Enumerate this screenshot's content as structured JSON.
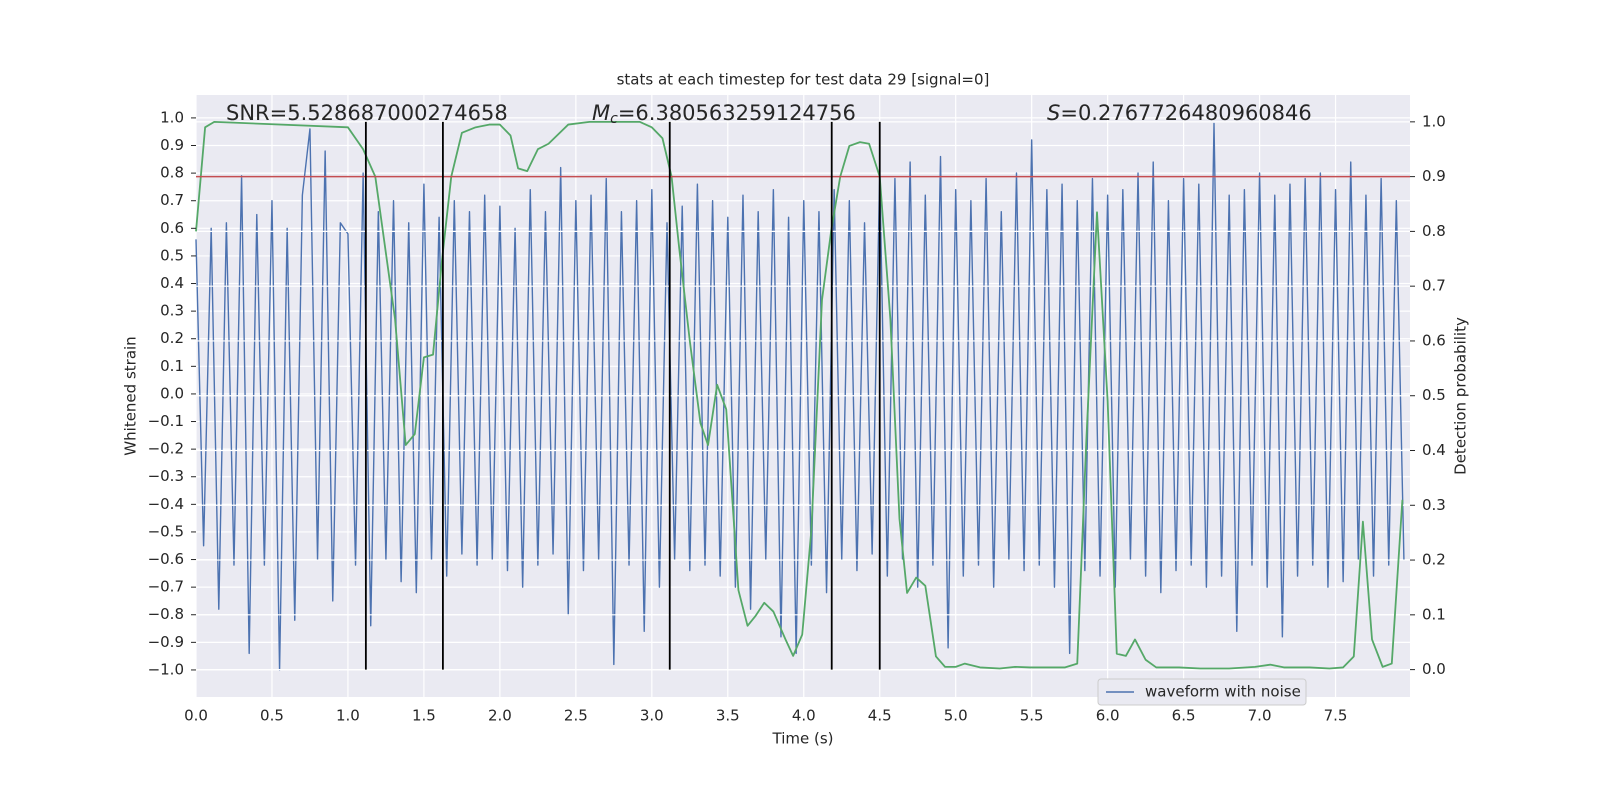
{
  "chart_data": {
    "type": "line",
    "title": "stats at each timestep for test data 29 [signal=0]",
    "xlabel": "Time (s)",
    "ylabel": "Whitened strain",
    "y2label": "Detection probability",
    "annotations": [
      {
        "text": "SNR=5.528687000274658"
      },
      {
        "symbol": "M",
        "subscript": "c",
        "text": "=6.380563259124756"
      },
      {
        "symbol": "S",
        "text": "=0.2767726480960846"
      }
    ],
    "xlim": [
      0,
      7.99
    ],
    "ylim": [
      -1.098,
      1.083
    ],
    "y2lim": [
      -0.05,
      1.049
    ],
    "xticks": [
      {
        "value": 0,
        "label": "0.0"
      },
      {
        "value": 0.5,
        "label": "0.5"
      },
      {
        "value": 1,
        "label": "1.0"
      },
      {
        "value": 1.5,
        "label": "1.5"
      },
      {
        "value": 2,
        "label": "2.0"
      },
      {
        "value": 2.5,
        "label": "2.5"
      },
      {
        "value": 3,
        "label": "3.0"
      },
      {
        "value": 3.5,
        "label": "3.5"
      },
      {
        "value": 4,
        "label": "4.0"
      },
      {
        "value": 4.5,
        "label": "4.5"
      },
      {
        "value": 5,
        "label": "5.0"
      },
      {
        "value": 5.5,
        "label": "5.5"
      },
      {
        "value": 6,
        "label": "6.0"
      },
      {
        "value": 6.5,
        "label": "6.5"
      },
      {
        "value": 7,
        "label": "7.0"
      },
      {
        "value": 7.5,
        "label": "7.5"
      }
    ],
    "yticks": [
      {
        "value": -1,
        "label": "−1.0"
      },
      {
        "value": -0.9,
        "label": "−0.9"
      },
      {
        "value": -0.8,
        "label": "−0.8"
      },
      {
        "value": -0.7,
        "label": "−0.7"
      },
      {
        "value": -0.6,
        "label": "−0.6"
      },
      {
        "value": -0.5,
        "label": "−0.5"
      },
      {
        "value": -0.4,
        "label": "−0.4"
      },
      {
        "value": -0.3,
        "label": "−0.3"
      },
      {
        "value": -0.2,
        "label": "−0.2"
      },
      {
        "value": -0.1,
        "label": "−0.1"
      },
      {
        "value": 0,
        "label": "0.0"
      },
      {
        "value": 0.1,
        "label": "0.1"
      },
      {
        "value": 0.2,
        "label": "0.2"
      },
      {
        "value": 0.3,
        "label": "0.3"
      },
      {
        "value": 0.4,
        "label": "0.4"
      },
      {
        "value": 0.5,
        "label": "0.5"
      },
      {
        "value": 0.6,
        "label": "0.6"
      },
      {
        "value": 0.7,
        "label": "0.7"
      },
      {
        "value": 0.8,
        "label": "0.8"
      },
      {
        "value": 0.9,
        "label": "0.9"
      },
      {
        "value": 1,
        "label": "1.0"
      }
    ],
    "y2ticks": [
      {
        "value": 0,
        "label": "0.0"
      },
      {
        "value": 0.1,
        "label": "0.1"
      },
      {
        "value": 0.2,
        "label": "0.2"
      },
      {
        "value": 0.3,
        "label": "0.3"
      },
      {
        "value": 0.4,
        "label": "0.4"
      },
      {
        "value": 0.5,
        "label": "0.5"
      },
      {
        "value": 0.6,
        "label": "0.6"
      },
      {
        "value": 0.7,
        "label": "0.7"
      },
      {
        "value": 0.8,
        "label": "0.8"
      },
      {
        "value": 0.9,
        "label": "0.9"
      },
      {
        "value": 1,
        "label": "1.0"
      }
    ],
    "grid": true,
    "legend": "lower right",
    "series": [
      {
        "name": "waveform with noise",
        "color": "#4c72b0",
        "axis": "y",
        "x": [
          0,
          0.05,
          0.1,
          0.15,
          0.2,
          0.25,
          0.3,
          0.35,
          0.4,
          0.45,
          0.5,
          0.55,
          0.6,
          0.65,
          0.7,
          0.75,
          0.8,
          0.85,
          0.9,
          0.95,
          1,
          1.05,
          1.1,
          1.15,
          1.2,
          1.25,
          1.3,
          1.35,
          1.4,
          1.45,
          1.5,
          1.55,
          1.6,
          1.65,
          1.7,
          1.75,
          1.8,
          1.85,
          1.9,
          1.95,
          2,
          2.05,
          2.1,
          2.15,
          2.2,
          2.25,
          2.3,
          2.35,
          2.4,
          2.45,
          2.5,
          2.55,
          2.6,
          2.65,
          2.7,
          2.75,
          2.8,
          2.85,
          2.9,
          2.95,
          3,
          3.05,
          3.1,
          3.15,
          3.2,
          3.25,
          3.3,
          3.35,
          3.4,
          3.45,
          3.5,
          3.55,
          3.6,
          3.65,
          3.7,
          3.75,
          3.8,
          3.85,
          3.9,
          3.95,
          4,
          4.05,
          4.1,
          4.15,
          4.2,
          4.25,
          4.3,
          4.35,
          4.4,
          4.45,
          4.5,
          4.55,
          4.6,
          4.65,
          4.7,
          4.75,
          4.8,
          4.85,
          4.9,
          4.95,
          5,
          5.05,
          5.1,
          5.15,
          5.2,
          5.25,
          5.3,
          5.35,
          5.4,
          5.45,
          5.5,
          5.55,
          5.6,
          5.65,
          5.7,
          5.75,
          5.8,
          5.85,
          5.9,
          5.95,
          6,
          6.05,
          6.1,
          6.15,
          6.2,
          6.25,
          6.3,
          6.35,
          6.4,
          6.45,
          6.5,
          6.55,
          6.6,
          6.65,
          6.7,
          6.75,
          6.8,
          6.85,
          6.9,
          6.95,
          7,
          7.05,
          7.1,
          7.15,
          7.2,
          7.25,
          7.3,
          7.35,
          7.4,
          7.45,
          7.5,
          7.55,
          7.6,
          7.65,
          7.7,
          7.75,
          7.8,
          7.85,
          7.9,
          7.95
        ],
        "values": [
          0.56,
          -0.55,
          0.6,
          -0.78,
          0.62,
          -0.62,
          0.79,
          -0.94,
          0.65,
          -0.62,
          0.7,
          -1.0,
          0.6,
          -0.82,
          0.72,
          0.96,
          -0.6,
          0.88,
          -0.75,
          0.62,
          0.58,
          -0.62,
          0.8,
          -0.84,
          0.66,
          -0.6,
          0.7,
          -0.68,
          0.62,
          -0.72,
          0.76,
          -0.6,
          0.64,
          -0.66,
          0.7,
          -0.58,
          0.66,
          -0.62,
          0.72,
          -0.6,
          0.68,
          -0.64,
          0.6,
          -0.7,
          0.74,
          -0.62,
          0.66,
          -0.58,
          0.82,
          -0.8,
          0.7,
          -0.64,
          0.72,
          -0.6,
          0.78,
          -0.98,
          0.66,
          -0.62,
          0.7,
          -0.86,
          0.74,
          -0.7,
          0.62,
          -0.6,
          0.68,
          -0.64,
          0.76,
          -0.62,
          0.7,
          -0.66,
          0.64,
          -0.7,
          0.72,
          -0.78,
          0.66,
          -0.6,
          0.74,
          -0.88,
          0.64,
          -0.94,
          0.7,
          -0.62,
          0.66,
          -0.72,
          0.74,
          -0.6,
          0.7,
          -0.64,
          0.62,
          -0.58,
          0.8,
          -0.66,
          0.78,
          -0.6,
          0.84,
          -0.7,
          0.72,
          -0.62,
          0.86,
          -0.92,
          0.74,
          -0.66,
          0.7,
          -0.62,
          0.78,
          -0.7,
          0.66,
          -0.6,
          0.8,
          -0.64,
          0.92,
          -0.62,
          0.74,
          -0.7,
          0.76,
          -0.94,
          0.7,
          -0.64,
          0.78,
          -0.66,
          0.72,
          -0.7,
          0.74,
          -0.6,
          0.8,
          -0.66,
          0.84,
          -0.72,
          0.7,
          -0.64,
          0.78,
          -0.62,
          0.76,
          -0.7,
          0.98,
          -0.66,
          0.72,
          -0.86,
          0.74,
          -0.62,
          0.8,
          -0.7,
          0.72,
          -0.88,
          0.76,
          -0.66,
          0.78,
          -0.62,
          0.8,
          -0.7,
          0.74,
          -0.68,
          0.84,
          -0.6,
          0.72,
          -0.66,
          0.78,
          -0.62,
          0.7,
          -0.6
        ]
      },
      {
        "color": "#55a868",
        "axis": "y2",
        "x": [
          0,
          0.06,
          0.12,
          1.0,
          1.1,
          1.18,
          1.24,
          1.31,
          1.38,
          1.44,
          1.5,
          1.56,
          1.62,
          1.68,
          1.75,
          1.84,
          1.93,
          2.0,
          2.07,
          2.12,
          2.18,
          2.25,
          2.32,
          2.45,
          2.59,
          2.92,
          3.0,
          3.07,
          3.13,
          3.18,
          3.25,
          3.32,
          3.37,
          3.43,
          3.49,
          3.57,
          3.63,
          3.68,
          3.74,
          3.8,
          3.88,
          3.93,
          3.99,
          4.05,
          4.12,
          4.18,
          4.24,
          4.3,
          4.37,
          4.43,
          4.5,
          4.57,
          4.63,
          4.68,
          4.74,
          4.8,
          4.87,
          4.93,
          5.0,
          5.06,
          5.16,
          5.29,
          5.39,
          5.49,
          5.62,
          5.72,
          5.8,
          5.86,
          5.93,
          6.0,
          6.06,
          6.12,
          6.18,
          6.25,
          6.32,
          6.47,
          6.61,
          6.8,
          6.97,
          7.07,
          7.16,
          7.33,
          7.46,
          7.55,
          7.62,
          7.68,
          7.74,
          7.81,
          7.87,
          7.94
        ],
        "values": [
          0.8,
          0.99,
          1.0,
          0.99,
          0.95,
          0.9,
          0.78,
          0.64,
          0.41,
          0.43,
          0.57,
          0.575,
          0.75,
          0.9,
          0.98,
          0.99,
          0.995,
          0.995,
          0.975,
          0.915,
          0.91,
          0.95,
          0.96,
          0.995,
          1.0,
          1.0,
          0.99,
          0.97,
          0.9,
          0.77,
          0.6,
          0.45,
          0.41,
          0.52,
          0.475,
          0.145,
          0.08,
          0.097,
          0.122,
          0.106,
          0.055,
          0.025,
          0.064,
          0.255,
          0.675,
          0.8,
          0.9,
          0.956,
          0.963,
          0.96,
          0.9,
          0.64,
          0.275,
          0.14,
          0.168,
          0.153,
          0.024,
          0.005,
          0.005,
          0.011,
          0.004,
          0.002,
          0.005,
          0.004,
          0.004,
          0.004,
          0.011,
          0.42,
          0.835,
          0.49,
          0.029,
          0.025,
          0.055,
          0.018,
          0.004,
          0.004,
          0.002,
          0.002,
          0.005,
          0.009,
          0.004,
          0.004,
          0.002,
          0.004,
          0.024,
          0.27,
          0.055,
          0.005,
          0.011,
          0.31
        ]
      }
    ],
    "hlines": [
      {
        "value": 0.9,
        "axis": "y2",
        "color": "#c44e52"
      }
    ],
    "vlines": {
      "x": [
        1.118,
        1.625,
        3.118,
        4.184,
        4.5
      ],
      "axis": "y2",
      "yrange": [
        0,
        1
      ],
      "color": "#000000"
    }
  }
}
